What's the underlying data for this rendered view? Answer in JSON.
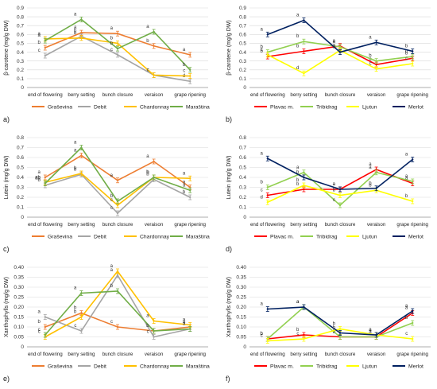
{
  "figure": {
    "x_categories": [
      "end of flowering",
      "berry setting",
      "bunch closure",
      "veraison",
      "grape ripening"
    ]
  },
  "chart_data": [
    {
      "type": "line",
      "panel_label": "a)",
      "ylabel": "β-carotene (mg/g DW)",
      "ylim": [
        0,
        0.9
      ],
      "yticks": [
        0,
        0.1,
        0.2,
        0.3,
        0.4,
        0.5,
        0.6,
        0.7,
        0.8,
        0.9
      ],
      "categories": [
        "end of flowering",
        "berry setting",
        "bunch closure",
        "veraison",
        "grape ripening"
      ],
      "grid": true,
      "legend": "bottom",
      "series": [
        {
          "name": "Graševina",
          "color": "#ED7D31",
          "values": [
            0.45,
            0.62,
            0.61,
            0.47,
            0.37
          ],
          "letters": [
            "b",
            "a",
            "a",
            "b",
            "a"
          ]
        },
        {
          "name": "Debit",
          "color": "#A5A5A5",
          "values": [
            0.36,
            0.58,
            0.37,
            0.14,
            0.07
          ],
          "letters": [
            "c",
            "b",
            "c",
            "c",
            "d"
          ]
        },
        {
          "name": "Chardonnay",
          "color": "#FFC000",
          "values": [
            0.55,
            0.56,
            0.5,
            0.14,
            0.13
          ],
          "letters": [
            "a",
            "b",
            "b",
            "c",
            "c"
          ]
        },
        {
          "name": "Maraština",
          "color": "#70AD47",
          "values": [
            0.53,
            0.77,
            0.44,
            0.63,
            0.2
          ],
          "letters": [
            "a",
            "a",
            "b",
            "a",
            "b"
          ]
        }
      ]
    },
    {
      "type": "line",
      "panel_label": "b)",
      "ylabel": "β-carotene (mg/g DW)",
      "ylim": [
        0,
        0.9
      ],
      "yticks": [
        0,
        0.1,
        0.2,
        0.3,
        0.4,
        0.5,
        0.6,
        0.7,
        0.8,
        0.9
      ],
      "categories": [
        "end of flowering",
        "berry setting",
        "bunch closure",
        "veraison",
        "grape ripening"
      ],
      "grid": true,
      "legend": "bottom",
      "series": [
        {
          "name": "Plavac m.",
          "color": "#FF0000",
          "values": [
            0.35,
            0.41,
            0.47,
            0.26,
            0.33
          ],
          "letters": [
            "b",
            "b",
            "a",
            "c",
            "b"
          ]
        },
        {
          "name": "Tribidrag",
          "color": "#92D050",
          "values": [
            0.4,
            0.52,
            0.46,
            0.3,
            0.35
          ],
          "letters": [
            "b",
            "b",
            "a",
            "b",
            "b"
          ]
        },
        {
          "name": "Ljutun",
          "color": "#FFFF00",
          "values": [
            0.37,
            0.16,
            0.42,
            0.21,
            0.27
          ],
          "letters": [
            "c",
            "d",
            "a",
            "c",
            "c"
          ]
        },
        {
          "name": "Merlot",
          "color": "#002060",
          "values": [
            0.6,
            0.76,
            0.4,
            0.51,
            0.41
          ],
          "letters": [
            "a",
            "a",
            "a",
            "a",
            "b"
          ]
        }
      ]
    },
    {
      "type": "line",
      "panel_label": "c)",
      "ylabel": "Lutein (mg/g DW)",
      "ylim": [
        0,
        0.8
      ],
      "yticks": [
        0,
        0.1,
        0.2,
        0.3,
        0.4,
        0.5,
        0.6,
        0.7,
        0.8
      ],
      "categories": [
        "end of flowering",
        "berry setting",
        "bunch closure",
        "veraison",
        "grape ripening"
      ],
      "grid": true,
      "legend": "bottom",
      "series": [
        {
          "name": "Graševina",
          "color": "#ED7D31",
          "values": [
            0.4,
            0.62,
            0.37,
            0.56,
            0.3
          ],
          "letters": [
            "a",
            "a",
            "a",
            "a",
            "a"
          ]
        },
        {
          "name": "Debit",
          "color": "#A5A5A5",
          "values": [
            0.32,
            0.43,
            0.04,
            0.38,
            0.2
          ],
          "letters": [
            "b",
            "b",
            "c",
            "b",
            "b"
          ]
        },
        {
          "name": "Chardonnay",
          "color": "#FFC000",
          "values": [
            0.35,
            0.44,
            0.12,
            0.4,
            0.39
          ],
          "letters": [
            "ab",
            "b",
            "c",
            "b",
            "a"
          ]
        },
        {
          "name": "Maraština",
          "color": "#70AD47",
          "values": [
            0.34,
            0.7,
            0.16,
            0.4,
            0.27
          ],
          "letters": [
            "ab",
            "a",
            "b",
            "b",
            "a"
          ]
        }
      ]
    },
    {
      "type": "line",
      "panel_label": "d)",
      "ylabel": "Lutein (mg/g DW)",
      "ylim": [
        0,
        0.8
      ],
      "yticks": [
        0,
        0.1,
        0.2,
        0.3,
        0.4,
        0.5,
        0.6,
        0.7,
        0.8
      ],
      "categories": [
        "end of flowering",
        "berry setting",
        "bunch closure",
        "veraison",
        "grape ripening"
      ],
      "grid": true,
      "legend": "bottom",
      "series": [
        {
          "name": "Plavac m.",
          "color": "#FF0000",
          "values": [
            0.22,
            0.28,
            0.28,
            0.48,
            0.34
          ],
          "letters": [
            "c",
            "b",
            "a",
            "a",
            "a"
          ]
        },
        {
          "name": "Tribidrag",
          "color": "#92D050",
          "values": [
            0.3,
            0.45,
            0.12,
            0.45,
            0.36
          ],
          "letters": [
            "b",
            "a",
            "c",
            "a",
            "a"
          ]
        },
        {
          "name": "Ljutun",
          "color": "#FFFF00",
          "values": [
            0.15,
            0.32,
            0.22,
            0.27,
            0.16
          ],
          "letters": [
            "d",
            "b",
            "b",
            "b",
            "b"
          ]
        },
        {
          "name": "Merlot",
          "color": "#002060",
          "values": [
            0.59,
            0.4,
            0.28,
            0.29,
            0.58
          ],
          "letters": [
            "a",
            "b",
            "a",
            "b",
            "a"
          ]
        }
      ]
    },
    {
      "type": "line",
      "panel_label": "e)",
      "ylabel": "Xanthophylls (mg/g DW)",
      "ylim": [
        0,
        0.4
      ],
      "yticks": [
        0,
        0.05,
        0.1,
        0.15,
        0.2,
        0.25,
        0.3,
        0.35,
        0.4
      ],
      "categories": [
        "end of flowering",
        "berry setting",
        "bunch closure",
        "veraison",
        "grape ripening"
      ],
      "grid": true,
      "legend": "bottom",
      "series": [
        {
          "name": "Graševina",
          "color": "#ED7D31",
          "values": [
            0.1,
            0.17,
            0.1,
            0.08,
            0.1
          ],
          "letters": [
            "b",
            "b",
            "c",
            "b",
            "a"
          ]
        },
        {
          "name": "Debit",
          "color": "#A5A5A5",
          "values": [
            0.15,
            0.08,
            0.36,
            0.05,
            0.09
          ],
          "letters": [
            "a",
            "c",
            "a",
            "c",
            "a"
          ]
        },
        {
          "name": "Chardonnay",
          "color": "#FFC000",
          "values": [
            0.05,
            0.15,
            0.38,
            0.13,
            0.11
          ],
          "letters": [
            "c",
            "b",
            "a",
            "a",
            "a"
          ]
        },
        {
          "name": "Maraština",
          "color": "#70AD47",
          "values": [
            0.06,
            0.27,
            0.28,
            0.08,
            0.09
          ],
          "letters": [
            "c",
            "a",
            "b",
            "b",
            "a"
          ]
        }
      ]
    },
    {
      "type": "line",
      "panel_label": "f)",
      "ylabel": "Xanthophylls (mg/g DW)",
      "ylim": [
        0,
        0.4
      ],
      "yticks": [
        0,
        0.05,
        0.1,
        0.15,
        0.2,
        0.25,
        0.3,
        0.35,
        0.4
      ],
      "categories": [
        "end of flowering",
        "berry setting",
        "bunch closure",
        "veraison",
        "grape ripening"
      ],
      "grid": true,
      "legend": "bottom",
      "series": [
        {
          "name": "Plavac m.",
          "color": "#FF0000",
          "values": [
            0.04,
            0.06,
            0.05,
            0.05,
            0.17
          ],
          "letters": [
            "b",
            "b",
            "a",
            "a",
            "a"
          ]
        },
        {
          "name": "Tribidrag",
          "color": "#92D050",
          "values": [
            0.04,
            0.2,
            0.05,
            0.05,
            0.12
          ],
          "letters": [
            "b",
            "a",
            "b",
            "a",
            "b"
          ]
        },
        {
          "name": "Ljutun",
          "color": "#FFFF00",
          "values": [
            0.03,
            0.04,
            0.09,
            0.06,
            0.04
          ],
          "letters": [
            "c",
            "c",
            "b",
            "a",
            "c"
          ]
        },
        {
          "name": "Merlot",
          "color": "#002060",
          "values": [
            0.19,
            0.2,
            0.07,
            0.06,
            0.18
          ],
          "letters": [
            "a",
            "a",
            "b",
            "a",
            "a"
          ]
        }
      ]
    }
  ]
}
